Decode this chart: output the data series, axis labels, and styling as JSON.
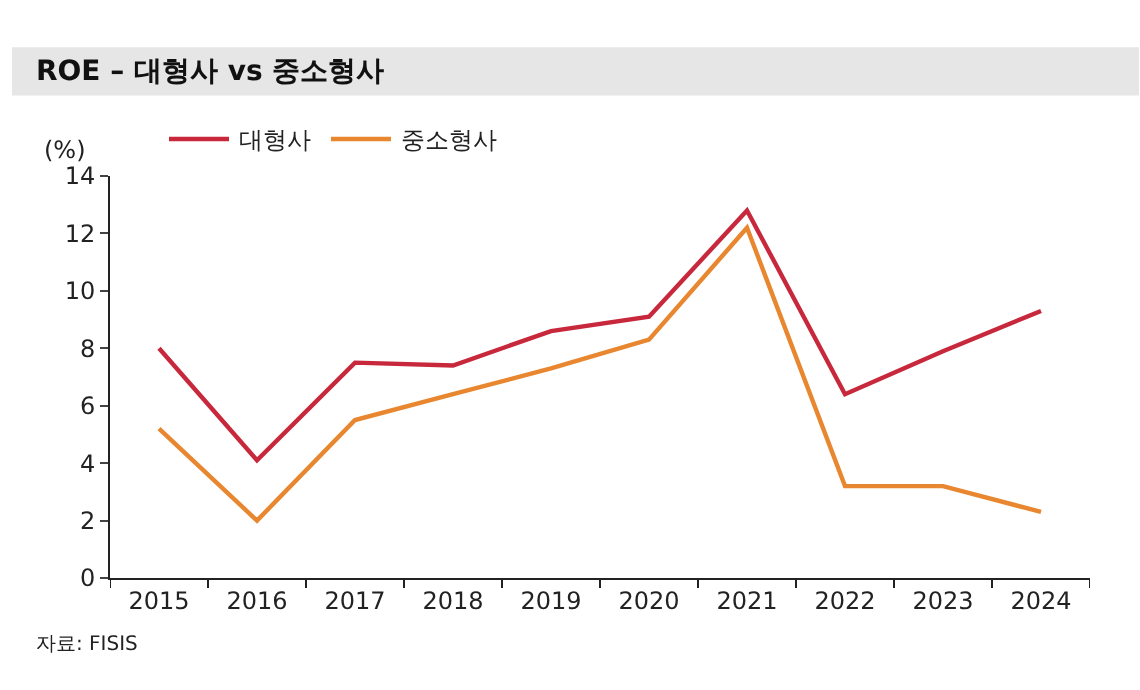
{
  "chart_data": {
    "type": "line",
    "title": "ROE – 대형사 vs 중소형사",
    "ylabel": "(%)",
    "categories": [
      "2015",
      "2016",
      "2017",
      "2018",
      "2019",
      "2020",
      "2021",
      "2022",
      "2023",
      "2024"
    ],
    "series": [
      {
        "name": "대형사",
        "color": "#c8283c",
        "values": [
          8.0,
          4.1,
          7.5,
          7.4,
          8.6,
          9.1,
          12.8,
          6.4,
          7.9,
          9.3
        ]
      },
      {
        "name": "중소형사",
        "color": "#e8872f",
        "values": [
          5.2,
          2.0,
          5.5,
          6.4,
          7.3,
          8.3,
          12.2,
          3.2,
          3.2,
          2.3
        ]
      }
    ],
    "ylim": [
      0,
      14
    ],
    "yticks": [
      0,
      2,
      4,
      6,
      8,
      10,
      12,
      14
    ],
    "legend": "top left",
    "marker": "none",
    "line_style": "solid",
    "annotations": [
      "자료: FISIS"
    ]
  }
}
